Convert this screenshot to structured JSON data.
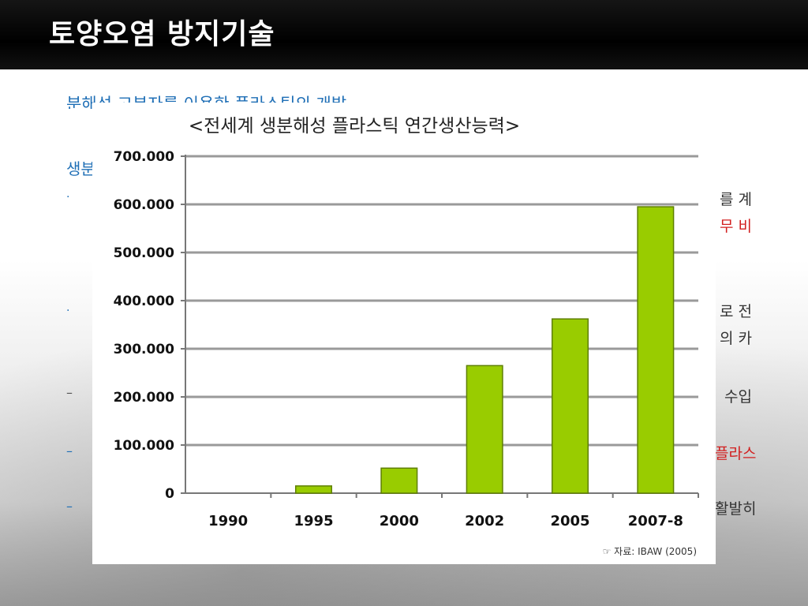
{
  "header": {
    "title": "토양오염 방지기술"
  },
  "slide": {
    "subtitle": "분해성 고분자를 이용한 플라스틱의 개발",
    "subtitle_2": "생분",
    "right_fragments": [
      {
        "text": "를 계",
        "color": "dark"
      },
      {
        "text": "무 비",
        "color": "red"
      },
      {
        "text": "로 전",
        "color": "dark"
      },
      {
        "text": "의 카",
        "color": "dark"
      },
      {
        "text": "수입",
        "color": "dark"
      },
      {
        "text": "플라스",
        "color": "red"
      },
      {
        "text": "활발히",
        "color": "dark"
      }
    ],
    "bullet_marks": [
      "·",
      "·"
    ],
    "dash_marks": [
      "–",
      "–",
      "–"
    ]
  },
  "chart": {
    "title": "<전세계 생분해성 플라스틱 연간생산능력>",
    "source": "☞ 자료: IBAW (2005)",
    "colors": {
      "bar": "#99cc00",
      "bar_edge": "#5e7f00",
      "grid": "#9a9a9a"
    }
  },
  "chart_data": {
    "type": "bar",
    "title": "<전세계 생분해성 플라스틱 연간생산능력>",
    "categories": [
      "1990",
      "1995",
      "2000",
      "2002",
      "2005",
      "2007-8"
    ],
    "values": [
      0,
      15000,
      52000,
      265000,
      362000,
      595000
    ],
    "yticks": [
      "0",
      "100.000",
      "200.000",
      "300.000",
      "400.000",
      "500.000",
      "600.000",
      "700.000"
    ],
    "ylim": [
      0,
      700000
    ],
    "grid": true,
    "legend": "none",
    "xlabel": "",
    "ylabel": ""
  }
}
